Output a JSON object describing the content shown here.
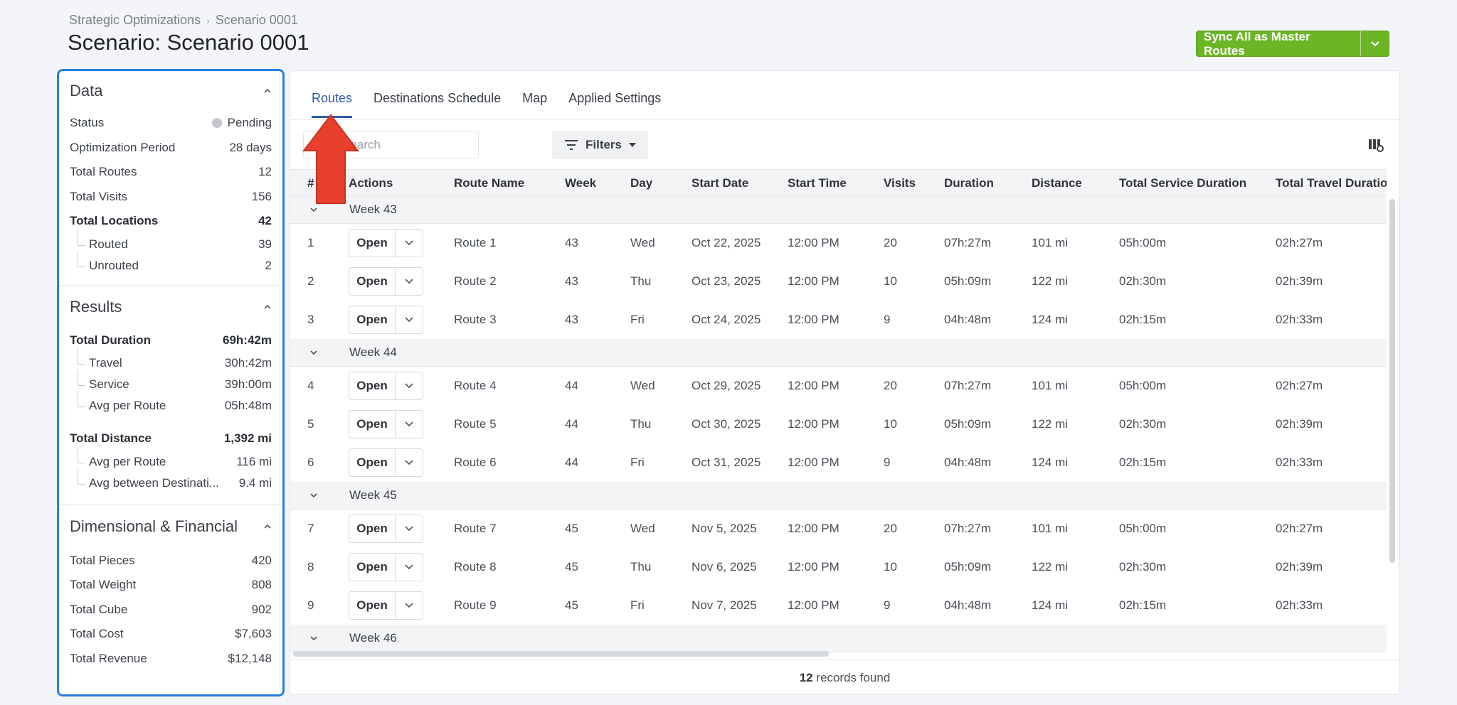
{
  "breadcrumb": {
    "parent": "Strategic Optimizations",
    "separator": "›",
    "current": "Scenario 0001"
  },
  "page_title": "Scenario: Scenario 0001",
  "sync_button": {
    "label": "Sync All as Master Routes"
  },
  "data_section": {
    "title": "Data",
    "rows": [
      {
        "label": "Status",
        "value": "Pending"
      },
      {
        "label": "Optimization Period",
        "value": "28 days"
      },
      {
        "label": "Total Routes",
        "value": "12"
      },
      {
        "label": "Total Visits",
        "value": "156"
      },
      {
        "label": "Total Locations",
        "value": "42"
      },
      {
        "label": "Routed",
        "value": "39"
      },
      {
        "label": "Unrouted",
        "value": "2"
      }
    ]
  },
  "results_section": {
    "title": "Results",
    "rows": [
      {
        "label": "Total Duration",
        "value": "69h:42m"
      },
      {
        "label": "Travel",
        "value": "30h:42m"
      },
      {
        "label": "Service",
        "value": "39h:00m"
      },
      {
        "label": "Avg per Route",
        "value": "05h:48m"
      },
      {
        "label": "Total Distance",
        "value": "1,392 mi"
      },
      {
        "label": "Avg per Route",
        "value": "116 mi"
      },
      {
        "label": "Avg between Destinati...",
        "value": "9.4 mi"
      }
    ]
  },
  "financial_section": {
    "title": "Dimensional & Financial",
    "rows": [
      {
        "label": "Total Pieces",
        "value": "420"
      },
      {
        "label": "Total Weight",
        "value": "808"
      },
      {
        "label": "Total Cube",
        "value": "902"
      },
      {
        "label": "Total Cost",
        "value": "$7,603"
      },
      {
        "label": "Total Revenue",
        "value": "$12,148"
      }
    ]
  },
  "tabs": [
    {
      "label": "Routes",
      "active": true
    },
    {
      "label": "Destinations Schedule"
    },
    {
      "label": "Map"
    },
    {
      "label": "Applied Settings"
    }
  ],
  "search": {
    "placeholder": "Search"
  },
  "filters": {
    "label": "Filters"
  },
  "table": {
    "headers": [
      "#",
      "Actions",
      "Route Name",
      "Week",
      "Day",
      "Start Date",
      "Start Time",
      "Visits",
      "Duration",
      "Distance",
      "Total Service Duration",
      "Total Travel Duration"
    ],
    "open_label": "Open",
    "groups": [
      {
        "label": "Week 43",
        "rows": [
          [
            "1",
            "Route 1",
            "43",
            "Wed",
            "Oct 22, 2025",
            "12:00 PM",
            "20",
            "07h:27m",
            "101 mi",
            "05h:00m",
            "02h:27m"
          ],
          [
            "2",
            "Route 2",
            "43",
            "Thu",
            "Oct 23, 2025",
            "12:00 PM",
            "10",
            "05h:09m",
            "122 mi",
            "02h:30m",
            "02h:39m"
          ],
          [
            "3",
            "Route 3",
            "43",
            "Fri",
            "Oct 24, 2025",
            "12:00 PM",
            "9",
            "04h:48m",
            "124 mi",
            "02h:15m",
            "02h:33m"
          ]
        ]
      },
      {
        "label": "Week 44",
        "rows": [
          [
            "4",
            "Route 4",
            "44",
            "Wed",
            "Oct 29, 2025",
            "12:00 PM",
            "20",
            "07h:27m",
            "101 mi",
            "05h:00m",
            "02h:27m"
          ],
          [
            "5",
            "Route 5",
            "44",
            "Thu",
            "Oct 30, 2025",
            "12:00 PM",
            "10",
            "05h:09m",
            "122 mi",
            "02h:30m",
            "02h:39m"
          ],
          [
            "6",
            "Route 6",
            "44",
            "Fri",
            "Oct 31, 2025",
            "12:00 PM",
            "9",
            "04h:48m",
            "124 mi",
            "02h:15m",
            "02h:33m"
          ]
        ]
      },
      {
        "label": "Week 45",
        "rows": [
          [
            "7",
            "Route 7",
            "45",
            "Wed",
            "Nov 5, 2025",
            "12:00 PM",
            "20",
            "07h:27m",
            "101 mi",
            "05h:00m",
            "02h:27m"
          ],
          [
            "8",
            "Route 8",
            "45",
            "Thu",
            "Nov 6, 2025",
            "12:00 PM",
            "10",
            "05h:09m",
            "122 mi",
            "02h:30m",
            "02h:39m"
          ],
          [
            "9",
            "Route 9",
            "45",
            "Fri",
            "Nov 7, 2025",
            "12:00 PM",
            "9",
            "04h:48m",
            "124 mi",
            "02h:15m",
            "02h:33m"
          ]
        ]
      },
      {
        "label": "Week 46",
        "rows": []
      }
    ]
  },
  "footer": {
    "count": "12",
    "text": "records found"
  },
  "colors": {
    "accent": "#2f5aa8",
    "primary_button": "#6cb526",
    "panel_highlight": "#2a7fdc",
    "arrow": "#e8402c"
  }
}
